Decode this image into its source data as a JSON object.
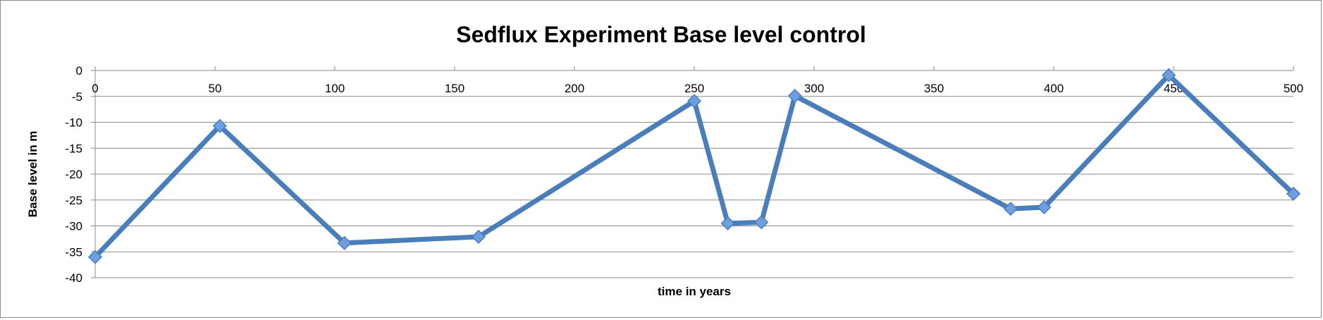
{
  "chart_data": {
    "type": "line",
    "title": "Sedflux Experiment Base level control",
    "xlabel": "time in years",
    "ylabel": "Base level in m",
    "xlim": [
      0,
      500
    ],
    "ylim": [
      -40,
      0
    ],
    "x_ticks": [
      "0",
      "50",
      "100",
      "150",
      "200",
      "250",
      "300",
      "350",
      "400",
      "450",
      "500"
    ],
    "y_ticks": [
      "0",
      "-5",
      "-10",
      "-15",
      "-20",
      "-25",
      "-30",
      "-35",
      "-40"
    ],
    "x_tick_values": [
      0,
      50,
      100,
      150,
      200,
      250,
      300,
      350,
      400,
      450,
      500
    ],
    "y_tick_values": [
      0,
      -5,
      -10,
      -15,
      -20,
      -25,
      -30,
      -35,
      -40
    ],
    "grid": "horizontal",
    "legend": "none",
    "series": [
      {
        "x": [
          0,
          52,
          104,
          160,
          250,
          264,
          278,
          292,
          382,
          396,
          448,
          500
        ],
        "y": [
          -36,
          -10.7,
          -33.3,
          -32.1,
          -5.9,
          -29.5,
          -29.3,
          -4.9,
          -26.7,
          -26.4,
          -0.9,
          -23.8
        ],
        "marker": "diamond",
        "color": "#4a7ebb",
        "marker_color": "#6d9ee0"
      }
    ]
  }
}
